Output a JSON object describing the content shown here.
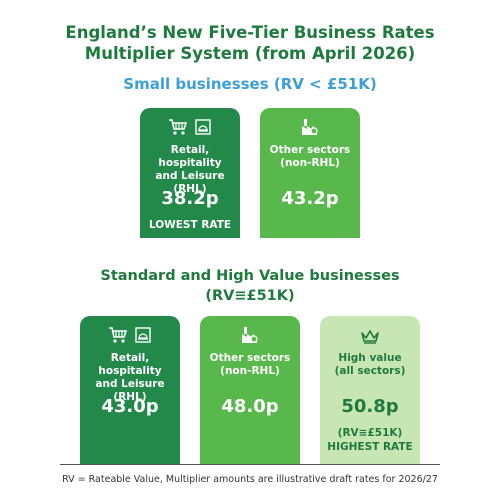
{
  "title_line1": "England’s New Five-Tier Business Rates",
  "title_line2": "Multiplier System (from April 2026)",
  "small_section": {
    "heading": "Small businesses (RV < £51K)",
    "cards": [
      {
        "label": [
          "Retail, hospitality",
          "and Leisure",
          "(RHL)"
        ],
        "rate": "38.2p",
        "note": "LOWEST RATE",
        "icons": [
          "shopping-cart-icon",
          "hotel-service-icon"
        ]
      },
      {
        "label": [
          "Other sectors",
          "(non-RHL)"
        ],
        "rate": "43.2p",
        "icons": [
          "factory-icon"
        ]
      }
    ]
  },
  "standard_section": {
    "heading_line1": "Standard and High Value businesses",
    "heading_line2": "(RV≡£51K)",
    "cards": [
      {
        "label": [
          "Retail, hospitality",
          "and Leisure",
          "(RHL)"
        ],
        "rate": "43.0p",
        "icons": [
          "shopping-cart-icon",
          "hotel-service-icon"
        ]
      },
      {
        "label": [
          "Other sectors",
          "(non-RHL)"
        ],
        "rate": "48.0p",
        "icons": [
          "factory-icon"
        ]
      },
      {
        "label": [
          "High value",
          "(all sectors)"
        ],
        "rate": "50.8p",
        "note_line1": "(RV≡£51K)",
        "note_line2": "HIGHEST RATE",
        "icons": [
          "crown-icon"
        ]
      }
    ]
  },
  "footnote": "RV = Rateable Value, Multiplier amounts are illustrative draft rates for 2026/27",
  "colors": {
    "dark_green": "#22894a",
    "mid_green": "#58b84b",
    "light_green": "#c8e6b4",
    "title_green": "#1f7a3d",
    "blue": "#3c9fd6"
  }
}
